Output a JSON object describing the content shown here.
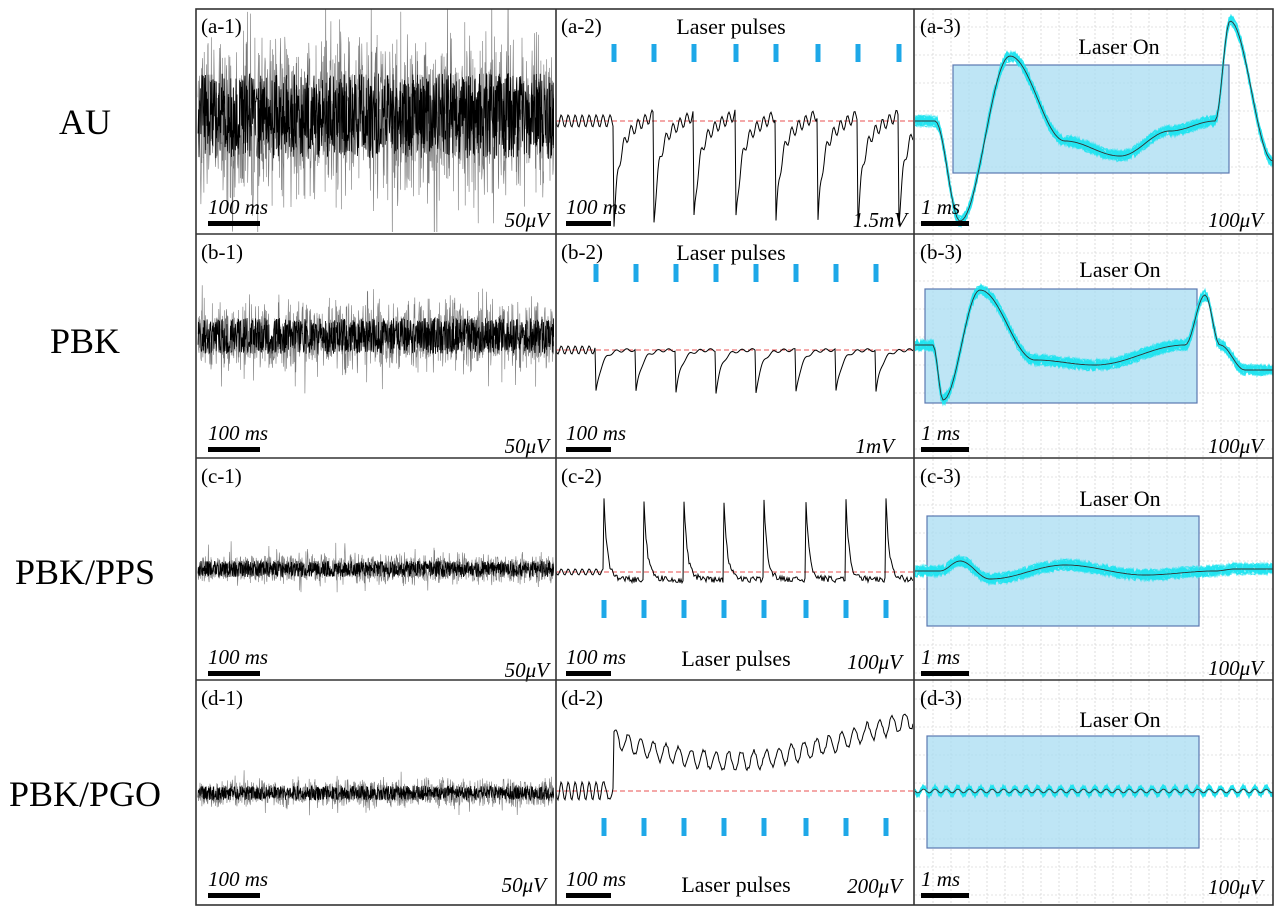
{
  "rows": [
    {
      "name": "AU",
      "panels": [
        {
          "label": "(a-1)",
          "time_scale": "100 ms",
          "amp_scale": "50μV"
        },
        {
          "label": "(a-2)",
          "time_scale": "100 ms",
          "amp_scale": "1.5mV",
          "pulses_label": "Laser pulses"
        },
        {
          "label": "(a-3)",
          "time_scale": "1 ms",
          "amp_scale": "100μV",
          "laser_label": "Laser On"
        }
      ]
    },
    {
      "name": "PBK",
      "panels": [
        {
          "label": "(b-1)",
          "time_scale": "100 ms",
          "amp_scale": "50μV"
        },
        {
          "label": "(b-2)",
          "time_scale": "100 ms",
          "amp_scale": "1mV",
          "pulses_label": "Laser pulses"
        },
        {
          "label": "(b-3)",
          "time_scale": "1 ms",
          "amp_scale": "100μV",
          "laser_label": "Laser On"
        }
      ]
    },
    {
      "name": "PBK/PPS",
      "panels": [
        {
          "label": "(c-1)",
          "time_scale": "100 ms",
          "amp_scale": "50μV"
        },
        {
          "label": "(c-2)",
          "time_scale": "100 ms",
          "amp_scale": "100μV",
          "pulses_label": "Laser pulses"
        },
        {
          "label": "(c-3)",
          "time_scale": "1 ms",
          "amp_scale": "100μV",
          "laser_label": "Laser On"
        }
      ]
    },
    {
      "name": "PBK/PGO",
      "panels": [
        {
          "label": "(d-1)",
          "time_scale": "100 ms",
          "amp_scale": "50μV"
        },
        {
          "label": "(d-2)",
          "time_scale": "100 ms",
          "amp_scale": "200μV",
          "pulses_label": "Laser pulses"
        },
        {
          "label": "(d-3)",
          "time_scale": "1 ms",
          "amp_scale": "100μV",
          "laser_label": "Laser On"
        }
      ]
    }
  ],
  "colors": {
    "trace": "#000000",
    "pulse": "#1ea8e8",
    "baseline": "#e85050",
    "scope_trace": "#22e4f0",
    "laser_box_fill": "#a8dcf2",
    "laser_box_stroke": "#5a78b0",
    "grid": "#c8c8c8"
  }
}
